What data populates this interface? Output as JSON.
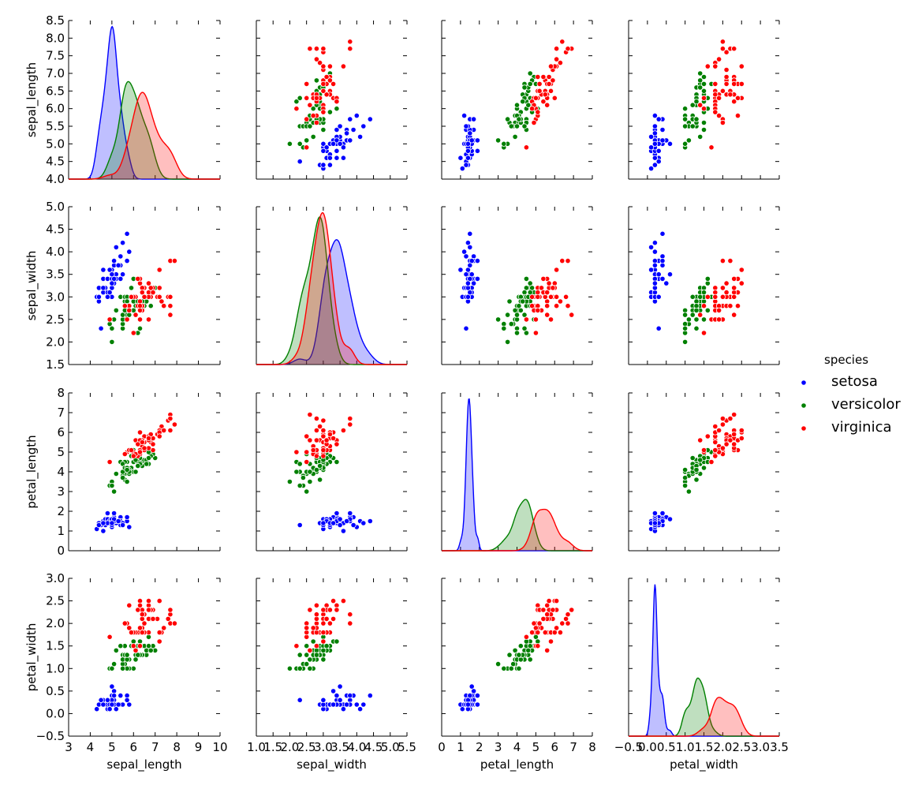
{
  "chart_data": {
    "type": "scatter",
    "title": "",
    "variables": [
      "sepal_length",
      "sepal_width",
      "petal_length",
      "petal_width"
    ],
    "axis_labels": [
      "sepal_length",
      "sepal_width",
      "petal_length",
      "petal_width"
    ],
    "axis_ranges": {
      "sepal_length": [
        4.0,
        8.5
      ],
      "sepal_width": [
        1.5,
        5.0
      ],
      "petal_length": [
        0,
        8
      ],
      "petal_width": [
        -0.5,
        3.0
      ]
    },
    "x_axis_ranges": {
      "sepal_length": [
        3,
        10
      ],
      "sepal_width": [
        1.0,
        5.5
      ],
      "petal_length": [
        0,
        8
      ],
      "petal_width": [
        -0.5,
        3.5
      ]
    },
    "y_ticks": {
      "sepal_length": [
        "4.0",
        "4.5",
        "5.0",
        "5.5",
        "6.0",
        "6.5",
        "7.0",
        "7.5",
        "8.0",
        "8.5"
      ],
      "sepal_width": [
        "1.5",
        "2.0",
        "2.5",
        "3.0",
        "3.5",
        "4.0",
        "4.5",
        "5.0"
      ],
      "petal_length": [
        "0",
        "1",
        "2",
        "3",
        "4",
        "5",
        "6",
        "7",
        "8"
      ],
      "petal_width": [
        "−0.5",
        "0.0",
        "0.5",
        "1.0",
        "1.5",
        "2.0",
        "2.5",
        "3.0"
      ]
    },
    "x_ticks": {
      "sepal_length": [
        "3",
        "4",
        "5",
        "6",
        "7",
        "8",
        "9",
        "10"
      ],
      "sepal_width": [
        "1.0",
        "1.5",
        "2.0",
        "2.5",
        "3.0",
        "3.5",
        "4.0",
        "4.5",
        "5.0",
        "5.5"
      ],
      "petal_length": [
        "0",
        "1",
        "2",
        "3",
        "4",
        "5",
        "6",
        "7",
        "8"
      ],
      "petal_width": [
        "−0.5",
        "0.0",
        "0.5",
        "1.0",
        "1.5",
        "2.0",
        "2.5",
        "3.0",
        "3.5"
      ]
    },
    "legend": {
      "title": "species",
      "position": "right",
      "entries": [
        "setosa",
        "versicolor",
        "virginica"
      ]
    },
    "series": [
      {
        "name": "setosa",
        "color": "#0000ff",
        "points": [
          [
            5.1,
            3.5,
            1.4,
            0.2
          ],
          [
            4.9,
            3.0,
            1.4,
            0.2
          ],
          [
            4.7,
            3.2,
            1.3,
            0.2
          ],
          [
            4.6,
            3.1,
            1.5,
            0.2
          ],
          [
            5.0,
            3.6,
            1.4,
            0.2
          ],
          [
            5.4,
            3.9,
            1.7,
            0.4
          ],
          [
            4.6,
            3.4,
            1.4,
            0.3
          ],
          [
            5.0,
            3.4,
            1.5,
            0.2
          ],
          [
            4.4,
            2.9,
            1.4,
            0.2
          ],
          [
            4.9,
            3.1,
            1.5,
            0.1
          ],
          [
            5.4,
            3.7,
            1.5,
            0.2
          ],
          [
            4.8,
            3.4,
            1.6,
            0.2
          ],
          [
            4.8,
            3.0,
            1.4,
            0.1
          ],
          [
            4.3,
            3.0,
            1.1,
            0.1
          ],
          [
            5.8,
            4.0,
            1.2,
            0.2
          ],
          [
            5.7,
            4.4,
            1.5,
            0.4
          ],
          [
            5.4,
            3.9,
            1.3,
            0.4
          ],
          [
            5.1,
            3.5,
            1.4,
            0.3
          ],
          [
            5.7,
            3.8,
            1.7,
            0.3
          ],
          [
            5.1,
            3.8,
            1.5,
            0.3
          ],
          [
            5.4,
            3.4,
            1.7,
            0.2
          ],
          [
            5.1,
            3.7,
            1.5,
            0.4
          ],
          [
            4.6,
            3.6,
            1.0,
            0.2
          ],
          [
            5.1,
            3.3,
            1.7,
            0.5
          ],
          [
            4.8,
            3.4,
            1.9,
            0.2
          ],
          [
            5.0,
            3.0,
            1.6,
            0.2
          ],
          [
            5.0,
            3.4,
            1.6,
            0.4
          ],
          [
            5.2,
            3.5,
            1.5,
            0.2
          ],
          [
            5.2,
            3.4,
            1.4,
            0.2
          ],
          [
            4.7,
            3.2,
            1.6,
            0.2
          ],
          [
            4.8,
            3.1,
            1.6,
            0.2
          ],
          [
            5.4,
            3.4,
            1.5,
            0.4
          ],
          [
            5.2,
            4.1,
            1.5,
            0.1
          ],
          [
            5.5,
            4.2,
            1.4,
            0.2
          ],
          [
            4.9,
            3.1,
            1.5,
            0.2
          ],
          [
            5.0,
            3.2,
            1.2,
            0.2
          ],
          [
            5.5,
            3.5,
            1.3,
            0.2
          ],
          [
            4.9,
            3.6,
            1.4,
            0.1
          ],
          [
            4.4,
            3.0,
            1.3,
            0.2
          ],
          [
            5.1,
            3.4,
            1.5,
            0.2
          ],
          [
            5.0,
            3.5,
            1.3,
            0.3
          ],
          [
            4.5,
            2.3,
            1.3,
            0.3
          ],
          [
            4.4,
            3.2,
            1.3,
            0.2
          ],
          [
            5.0,
            3.5,
            1.6,
            0.6
          ],
          [
            5.1,
            3.8,
            1.9,
            0.4
          ],
          [
            4.8,
            3.0,
            1.4,
            0.3
          ],
          [
            5.1,
            3.8,
            1.6,
            0.2
          ],
          [
            4.6,
            3.2,
            1.4,
            0.2
          ],
          [
            5.3,
            3.7,
            1.5,
            0.2
          ],
          [
            5.0,
            3.3,
            1.4,
            0.2
          ]
        ]
      },
      {
        "name": "versicolor",
        "color": "#008000",
        "points": [
          [
            7.0,
            3.2,
            4.7,
            1.4
          ],
          [
            6.4,
            3.2,
            4.5,
            1.5
          ],
          [
            6.9,
            3.1,
            4.9,
            1.5
          ],
          [
            5.5,
            2.3,
            4.0,
            1.3
          ],
          [
            6.5,
            2.8,
            4.6,
            1.5
          ],
          [
            5.7,
            2.8,
            4.5,
            1.3
          ],
          [
            6.3,
            3.3,
            4.7,
            1.6
          ],
          [
            4.9,
            2.4,
            3.3,
            1.0
          ],
          [
            6.6,
            2.9,
            4.6,
            1.3
          ],
          [
            5.2,
            2.7,
            3.9,
            1.4
          ],
          [
            5.0,
            2.0,
            3.5,
            1.0
          ],
          [
            5.9,
            3.0,
            4.2,
            1.5
          ],
          [
            6.0,
            2.2,
            4.0,
            1.0
          ],
          [
            6.1,
            2.9,
            4.7,
            1.4
          ],
          [
            5.6,
            2.9,
            3.6,
            1.3
          ],
          [
            6.7,
            3.1,
            4.4,
            1.4
          ],
          [
            5.6,
            3.0,
            4.5,
            1.5
          ],
          [
            5.8,
            2.7,
            4.1,
            1.0
          ],
          [
            6.2,
            2.2,
            4.5,
            1.5
          ],
          [
            5.6,
            2.5,
            3.9,
            1.1
          ],
          [
            5.9,
            3.2,
            4.8,
            1.8
          ],
          [
            6.1,
            2.8,
            4.0,
            1.3
          ],
          [
            6.3,
            2.5,
            4.9,
            1.5
          ],
          [
            6.1,
            2.8,
            4.7,
            1.2
          ],
          [
            6.4,
            2.9,
            4.3,
            1.3
          ],
          [
            6.6,
            3.0,
            4.4,
            1.4
          ],
          [
            6.8,
            2.8,
            4.8,
            1.4
          ],
          [
            6.7,
            3.0,
            5.0,
            1.7
          ],
          [
            6.0,
            2.9,
            4.5,
            1.5
          ],
          [
            5.7,
            2.6,
            3.5,
            1.0
          ],
          [
            5.5,
            2.4,
            3.8,
            1.1
          ],
          [
            5.5,
            2.4,
            3.7,
            1.0
          ],
          [
            5.8,
            2.7,
            3.9,
            1.2
          ],
          [
            6.0,
            2.7,
            5.1,
            1.6
          ],
          [
            5.4,
            3.0,
            4.5,
            1.5
          ],
          [
            6.0,
            3.4,
            4.5,
            1.6
          ],
          [
            6.7,
            3.1,
            4.7,
            1.5
          ],
          [
            6.3,
            2.3,
            4.4,
            1.3
          ],
          [
            5.6,
            3.0,
            4.1,
            1.3
          ],
          [
            5.5,
            2.5,
            4.0,
            1.3
          ],
          [
            5.5,
            2.6,
            4.4,
            1.2
          ],
          [
            6.1,
            3.0,
            4.6,
            1.4
          ],
          [
            5.8,
            2.6,
            4.0,
            1.2
          ],
          [
            5.0,
            2.3,
            3.3,
            1.0
          ],
          [
            5.6,
            2.7,
            4.2,
            1.3
          ],
          [
            5.7,
            3.0,
            4.2,
            1.2
          ],
          [
            5.7,
            2.9,
            4.2,
            1.3
          ],
          [
            6.2,
            2.9,
            4.3,
            1.3
          ],
          [
            5.1,
            2.5,
            3.0,
            1.1
          ],
          [
            5.7,
            2.8,
            4.1,
            1.3
          ]
        ]
      },
      {
        "name": "virginica",
        "color": "#ff0000",
        "points": [
          [
            6.3,
            3.3,
            6.0,
            2.5
          ],
          [
            5.8,
            2.7,
            5.1,
            1.9
          ],
          [
            7.1,
            3.0,
            5.9,
            2.1
          ],
          [
            6.3,
            2.9,
            5.6,
            1.8
          ],
          [
            6.5,
            3.0,
            5.8,
            2.2
          ],
          [
            7.6,
            3.0,
            6.6,
            2.1
          ],
          [
            4.9,
            2.5,
            4.5,
            1.7
          ],
          [
            7.3,
            2.9,
            6.3,
            1.8
          ],
          [
            6.7,
            2.5,
            5.8,
            1.8
          ],
          [
            7.2,
            3.6,
            6.1,
            2.5
          ],
          [
            6.5,
            3.2,
            5.1,
            2.0
          ],
          [
            6.4,
            2.7,
            5.3,
            1.9
          ],
          [
            6.8,
            3.0,
            5.5,
            2.1
          ],
          [
            5.7,
            2.5,
            5.0,
            2.0
          ],
          [
            5.8,
            2.8,
            5.1,
            2.4
          ],
          [
            6.4,
            3.2,
            5.3,
            2.3
          ],
          [
            6.5,
            3.0,
            5.5,
            1.8
          ],
          [
            7.7,
            3.8,
            6.7,
            2.2
          ],
          [
            7.7,
            2.6,
            6.9,
            2.3
          ],
          [
            6.0,
            2.2,
            5.0,
            1.5
          ],
          [
            6.9,
            3.2,
            5.7,
            2.3
          ],
          [
            5.6,
            2.8,
            4.9,
            2.0
          ],
          [
            7.7,
            2.8,
            6.7,
            2.0
          ],
          [
            6.3,
            2.7,
            4.9,
            1.8
          ],
          [
            6.7,
            3.3,
            5.7,
            2.1
          ],
          [
            7.2,
            3.2,
            6.0,
            1.8
          ],
          [
            6.2,
            2.8,
            4.8,
            1.8
          ],
          [
            6.1,
            3.0,
            4.9,
            1.8
          ],
          [
            6.4,
            2.8,
            5.6,
            2.1
          ],
          [
            7.2,
            3.0,
            5.8,
            1.6
          ],
          [
            7.4,
            2.8,
            6.1,
            1.9
          ],
          [
            7.9,
            3.8,
            6.4,
            2.0
          ],
          [
            6.4,
            2.8,
            5.6,
            2.2
          ],
          [
            6.3,
            2.8,
            5.1,
            1.5
          ],
          [
            6.1,
            2.6,
            5.6,
            1.4
          ],
          [
            7.7,
            3.0,
            6.1,
            2.3
          ],
          [
            6.3,
            3.4,
            5.6,
            2.4
          ],
          [
            6.4,
            3.1,
            5.5,
            1.8
          ],
          [
            6.0,
            3.0,
            4.8,
            1.8
          ],
          [
            6.9,
            3.1,
            5.4,
            2.1
          ],
          [
            6.7,
            3.1,
            5.6,
            2.4
          ],
          [
            6.9,
            3.1,
            5.1,
            2.3
          ],
          [
            5.8,
            2.7,
            5.1,
            1.9
          ],
          [
            6.8,
            3.2,
            5.9,
            2.3
          ],
          [
            6.7,
            3.3,
            5.7,
            2.5
          ],
          [
            6.7,
            3.0,
            5.2,
            2.3
          ],
          [
            6.3,
            2.5,
            5.0,
            1.9
          ],
          [
            6.5,
            3.0,
            5.2,
            2.0
          ],
          [
            6.2,
            3.4,
            5.4,
            2.3
          ],
          [
            5.9,
            3.0,
            5.1,
            1.8
          ]
        ]
      }
    ]
  }
}
